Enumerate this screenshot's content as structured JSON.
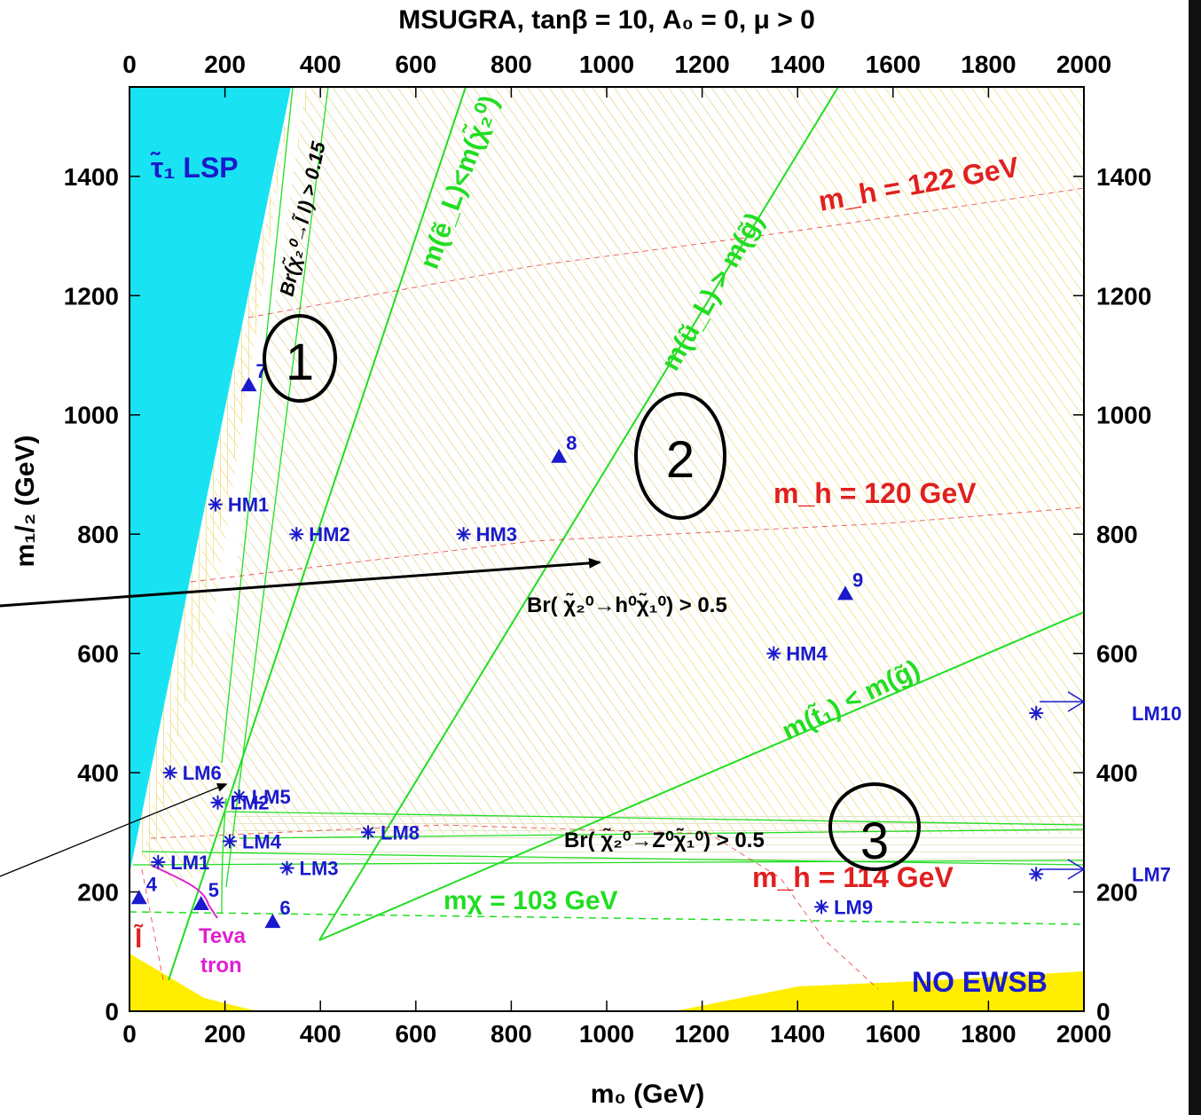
{
  "chart_data": {
    "type": "contour",
    "title": "MSUGRA, tanβ = 10, A₀ = 0, μ > 0",
    "xlabel": "m₀ (GeV)",
    "ylabel": "m₁/₂ (GeV)",
    "xlim": [
      0,
      2000
    ],
    "ylim": [
      0,
      1550
    ],
    "xticks": [
      "0",
      "200",
      "400",
      "600",
      "800",
      "1000",
      "1200",
      "1400",
      "1600",
      "1800",
      "2000"
    ],
    "yticks": [
      "0",
      "200",
      "400",
      "600",
      "800",
      "1000",
      "1200",
      "1400"
    ],
    "grid": false,
    "region_labels": {
      "stau_lsp": "τ̃₁ LSP",
      "no_ewsb": "NO EWSB",
      "slepton": "l̃",
      "tevatron": [
        "Teva",
        "tron"
      ]
    },
    "curve_labels": {
      "br_slepton": "Br(χ̃₂⁰→l̃ l) > 0.15",
      "br_higgs": "Br( χ̃₂⁰→h⁰χ̃₁⁰) > 0.5",
      "br_z": "Br( χ̃₂⁰→Z⁰χ̃₁⁰) > 0.5",
      "me_mchi": "m(ẽ_L)<m(χ̃₂⁰)",
      "mu_mg": "m(ũ_L) > m(g̃)",
      "mt_mg": "m(t̃₁) < m(g̃)",
      "mchi": "mχ = 103 GeV",
      "mh122": "m_h = 122 GeV",
      "mh120": "m_h = 120 GeV",
      "mh114": "m_h = 114 GeV"
    },
    "benchmark_stars": [
      {
        "label": "HM1",
        "x": 180,
        "y": 850
      },
      {
        "label": "HM2",
        "x": 350,
        "y": 800
      },
      {
        "label": "HM3",
        "x": 700,
        "y": 800
      },
      {
        "label": "HM4",
        "x": 1350,
        "y": 600
      },
      {
        "label": "LM1",
        "x": 60,
        "y": 250
      },
      {
        "label": "LM2",
        "x": 185,
        "y": 350
      },
      {
        "label": "LM3",
        "x": 330,
        "y": 240
      },
      {
        "label": "LM4",
        "x": 210,
        "y": 285
      },
      {
        "label": "LM5",
        "x": 230,
        "y": 360
      },
      {
        "label": "LM6",
        "x": 85,
        "y": 400
      },
      {
        "label": "LM7",
        "x": 1900,
        "y": 230
      },
      {
        "label": "LM8",
        "x": 500,
        "y": 300
      },
      {
        "label": "LM9",
        "x": 1450,
        "y": 175
      },
      {
        "label": "LM10",
        "x": 1900,
        "y": 500
      }
    ],
    "triangles": [
      {
        "label": "4",
        "x": 20,
        "y": 190
      },
      {
        "label": "5",
        "x": 150,
        "y": 180
      },
      {
        "label": "6",
        "x": 300,
        "y": 150
      },
      {
        "label": "7",
        "x": 250,
        "y": 1050
      },
      {
        "label": "8",
        "x": 900,
        "y": 930
      },
      {
        "label": "9",
        "x": 1500,
        "y": 700
      }
    ],
    "annotations": {
      "circle_1": "1",
      "circle_2": "2",
      "circle_3": "3"
    },
    "colors": {
      "stau_lsp": "#19e3f2",
      "no_ewsb": "#ffee00",
      "benchmark": "#1a1acc",
      "higgs_contour": "#e02020",
      "boundary_green": "#22dd22",
      "tevatron": "#e020d0",
      "hatch": "#f2e8a0"
    }
  }
}
